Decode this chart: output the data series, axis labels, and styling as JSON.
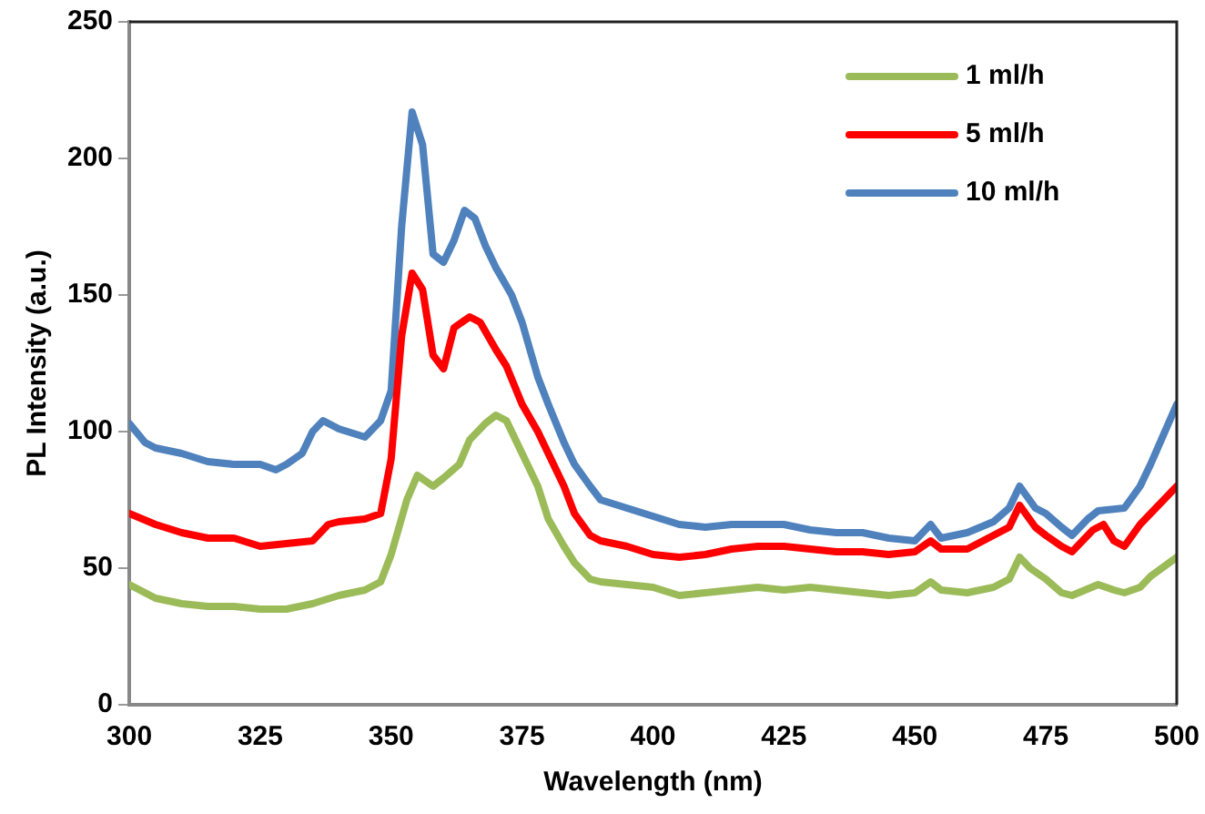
{
  "chart_data": {
    "type": "line",
    "xlabel": "Wavelength (nm)",
    "ylabel": "PL Intensity (a.u.)",
    "xlim": [
      300,
      500
    ],
    "xticks": [
      300,
      325,
      350,
      375,
      400,
      425,
      450,
      475,
      500
    ],
    "ylim": [
      0,
      250
    ],
    "yticks": [
      0,
      50,
      100,
      150,
      200,
      250
    ],
    "grid": false,
    "legend": "top right",
    "marker": "none",
    "line_style": "solid",
    "series": [
      {
        "name": "1 ml/h",
        "color": "#9bbb59",
        "x": [
          300,
          305,
          310,
          315,
          320,
          325,
          330,
          335,
          340,
          345,
          348,
          350,
          353,
          355,
          358,
          360,
          363,
          365,
          368,
          370,
          372,
          375,
          378,
          380,
          383,
          385,
          388,
          390,
          395,
          400,
          405,
          410,
          415,
          420,
          425,
          430,
          435,
          440,
          445,
          450,
          453,
          455,
          460,
          465,
          468,
          470,
          472,
          475,
          478,
          480,
          485,
          488,
          490,
          493,
          495,
          500
        ],
        "values": [
          44,
          39,
          37,
          36,
          36,
          35,
          35,
          37,
          40,
          42,
          45,
          55,
          75,
          84,
          80,
          83,
          88,
          97,
          103,
          106,
          104,
          92,
          80,
          68,
          58,
          52,
          46,
          45,
          44,
          43,
          40,
          41,
          42,
          43,
          42,
          43,
          42,
          41,
          40,
          41,
          45,
          42,
          41,
          43,
          46,
          54,
          50,
          46,
          41,
          40,
          44,
          42,
          41,
          43,
          47,
          54
        ]
      },
      {
        "name": "5 ml/h",
        "color": "#ff0000",
        "x": [
          300,
          305,
          310,
          315,
          320,
          325,
          330,
          335,
          338,
          340,
          345,
          348,
          350,
          352,
          354,
          356,
          358,
          360,
          362,
          365,
          367,
          370,
          372,
          375,
          378,
          380,
          383,
          385,
          388,
          390,
          395,
          400,
          405,
          410,
          415,
          420,
          425,
          430,
          435,
          440,
          445,
          450,
          453,
          455,
          460,
          465,
          468,
          470,
          473,
          475,
          478,
          480,
          484,
          486,
          488,
          490,
          493,
          495,
          500
        ],
        "values": [
          70,
          66,
          63,
          61,
          61,
          58,
          59,
          60,
          66,
          67,
          68,
          70,
          90,
          135,
          158,
          152,
          128,
          123,
          138,
          142,
          140,
          130,
          124,
          110,
          100,
          92,
          80,
          70,
          62,
          60,
          58,
          55,
          54,
          55,
          57,
          58,
          58,
          57,
          56,
          56,
          55,
          56,
          60,
          57,
          57,
          62,
          65,
          73,
          65,
          62,
          58,
          56,
          64,
          66,
          60,
          58,
          66,
          70,
          80
        ]
      },
      {
        "name": "10 ml/h",
        "color": "#4f81bd",
        "x": [
          300,
          303,
          305,
          310,
          315,
          320,
          325,
          328,
          330,
          333,
          335,
          337,
          340,
          345,
          348,
          350,
          352,
          354,
          356,
          358,
          360,
          362,
          364,
          366,
          368,
          370,
          373,
          375,
          378,
          380,
          383,
          385,
          388,
          390,
          395,
          400,
          405,
          410,
          415,
          420,
          425,
          430,
          435,
          440,
          445,
          450,
          453,
          455,
          460,
          465,
          468,
          470,
          473,
          475,
          478,
          480,
          483,
          485,
          490,
          493,
          495,
          500
        ],
        "values": [
          103,
          96,
          94,
          92,
          89,
          88,
          88,
          86,
          88,
          92,
          100,
          104,
          101,
          98,
          104,
          115,
          175,
          217,
          205,
          165,
          162,
          170,
          181,
          178,
          168,
          160,
          150,
          140,
          120,
          110,
          96,
          88,
          80,
          75,
          72,
          69,
          66,
          65,
          66,
          66,
          66,
          64,
          63,
          63,
          61,
          60,
          66,
          61,
          63,
          67,
          72,
          80,
          72,
          70,
          65,
          62,
          68,
          71,
          72,
          80,
          88,
          110
        ]
      }
    ]
  }
}
